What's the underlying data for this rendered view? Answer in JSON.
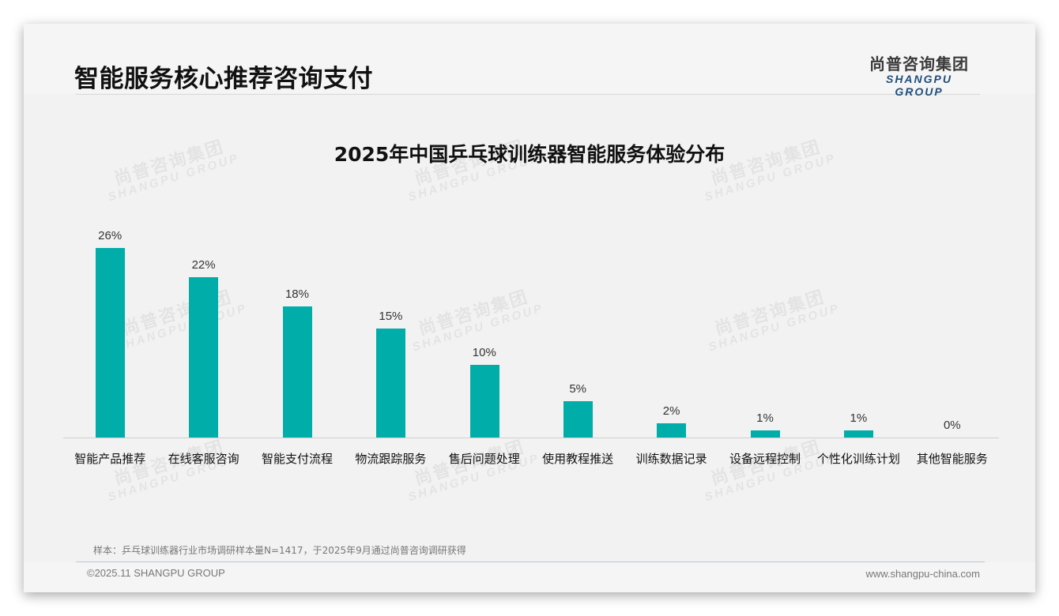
{
  "header": {
    "page_title": "智能服务核心推荐咨询支付",
    "logo_cn": "尚普咨询集团",
    "logo_en": "SHANGPU GROUP"
  },
  "watermark": {
    "cn": "尚普咨询集团",
    "en": "SHANGPU GROUP"
  },
  "colors": {
    "bar": "#00ada9",
    "logo_en": "#1f4e79"
  },
  "chart_data": {
    "type": "bar",
    "title": "2025年中国乒乓球训练器智能服务体验分布",
    "categories": [
      "智能产品推荐",
      "在线客服咨询",
      "智能支付流程",
      "物流跟踪服务",
      "售后问题处理",
      "使用教程推送",
      "训练数据记录",
      "设备远程控制",
      "个性化训练计划",
      "其他智能服务"
    ],
    "values": [
      26,
      22,
      18,
      15,
      10,
      5,
      2,
      1,
      1,
      0
    ],
    "value_labels": [
      "26%",
      "22%",
      "18%",
      "15%",
      "10%",
      "5%",
      "2%",
      "1%",
      "1%",
      "0%"
    ],
    "unit": "%",
    "xlabel": "",
    "ylabel": "",
    "ylim": [
      0,
      30
    ],
    "grid": false,
    "legend": null
  },
  "footer": {
    "note": "样本：乒乓球训练器行业市场调研样本量N=1417，于2025年9月通过尚普咨询调研获得",
    "copyright": "©2025.11 SHANGPU GROUP",
    "website": "www.shangpu-china.com"
  }
}
